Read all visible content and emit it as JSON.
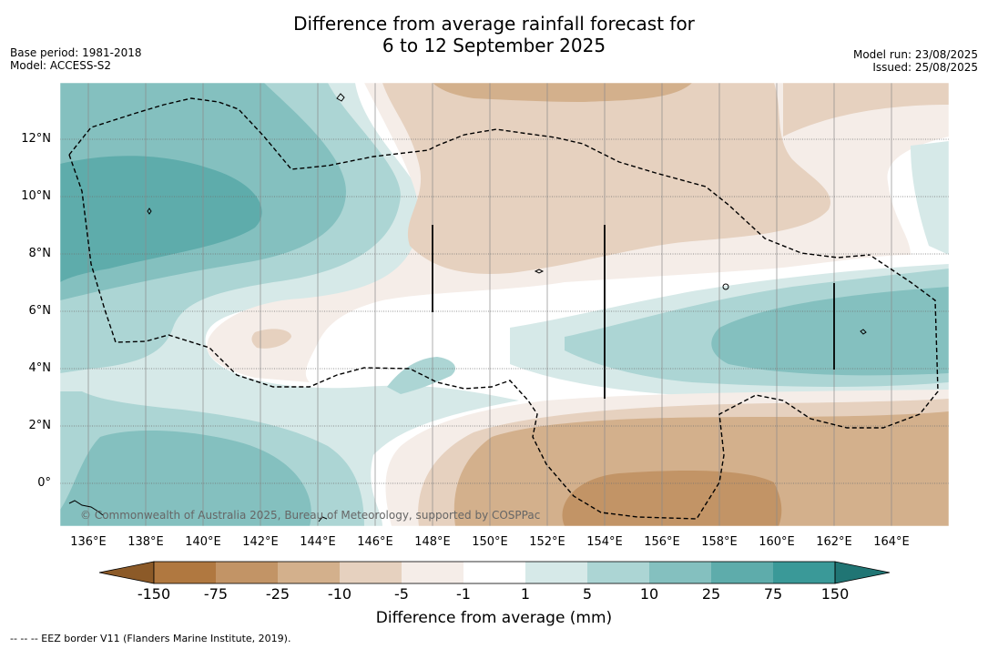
{
  "title": {
    "line1": "Difference from average rainfall forecast for",
    "line2": "6 to 12 September 2025"
  },
  "meta_left": {
    "base_period": "Base period: 1981-2018",
    "model": "Model: ACCESS-S2"
  },
  "meta_right": {
    "model_run": "Model run: 23/08/2025",
    "issued": "Issued: 25/08/2025"
  },
  "map": {
    "lat_labels": [
      "12°N",
      "10°N",
      "8°N",
      "6°N",
      "4°N",
      "2°N",
      "0°"
    ],
    "lon_labels": [
      "136°E",
      "138°E",
      "140°E",
      "142°E",
      "144°E",
      "146°E",
      "148°E",
      "150°E",
      "152°E",
      "154°E",
      "156°E",
      "158°E",
      "160°E",
      "162°E",
      "164°E"
    ],
    "copyright": "© Commonwealth of Australia 2025, Bureau of Meteorology, supported by COSPPac",
    "legend_style": "dashed line = EEZ border"
  },
  "colorbar": {
    "ticks": [
      "-150",
      "-75",
      "-25",
      "-10",
      "-5",
      "-1",
      "1",
      "5",
      "10",
      "25",
      "75",
      "150"
    ],
    "colors": [
      "#8c5a28",
      "#b07840",
      "#c29466",
      "#d3b08c",
      "#e6d1bf",
      "#f5ede8",
      "#ffffff",
      "#d6e9e8",
      "#acd5d4",
      "#84c0bf",
      "#5eacab",
      "#3a9998",
      "#207574"
    ],
    "label": "Difference from average (mm)"
  },
  "footer": "--  --  -- EEZ border V11 (Flanders Marine Institute, 2019)."
}
